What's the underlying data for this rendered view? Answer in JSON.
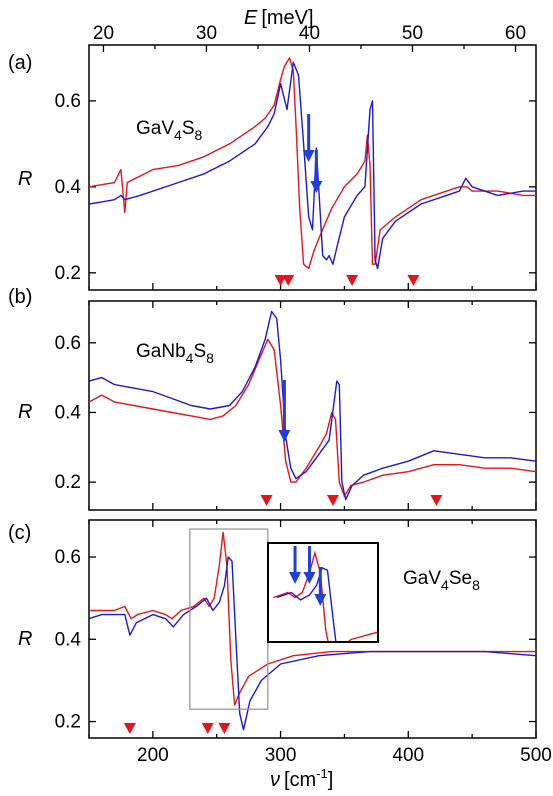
{
  "chart_data": [
    {
      "type": "line",
      "panel": "(a)",
      "compound": {
        "base": "GaV",
        "sub1": "4",
        "mid": "S",
        "sub2": "8"
      },
      "ylabel": "R",
      "ylim": [
        0.16,
        0.73
      ],
      "yticks": [
        0.2,
        0.4,
        0.6
      ],
      "top_axis": {
        "label_main": "E",
        "label_unit": "[meV]",
        "ticks": [
          20,
          30,
          40,
          50,
          60
        ]
      },
      "colors": {
        "series1": "#e8141c",
        "series2": "#1a1ad6",
        "markers": "#e8141c",
        "arrows": "#1f3fd8"
      },
      "series": [
        {
          "points": [
            [
              150,
              0.4
            ],
            [
              160,
              0.405
            ],
            [
              170,
              0.41
            ],
            [
              175,
              0.44
            ],
            [
              178,
              0.34
            ],
            [
              180,
              0.41
            ],
            [
              200,
              0.44
            ],
            [
              220,
              0.45
            ],
            [
              240,
              0.47
            ],
            [
              260,
              0.5
            ],
            [
              280,
              0.54
            ],
            [
              288,
              0.56
            ],
            [
              295,
              0.59
            ],
            [
              300,
              0.65
            ],
            [
              303,
              0.68
            ],
            [
              307,
              0.7
            ],
            [
              310,
              0.67
            ],
            [
              312,
              0.55
            ],
            [
              315,
              0.35
            ],
            [
              318,
              0.22
            ],
            [
              322,
              0.21
            ],
            [
              326,
              0.25
            ],
            [
              330,
              0.28
            ],
            [
              340,
              0.35
            ],
            [
              350,
              0.4
            ],
            [
              360,
              0.43
            ],
            [
              366,
              0.46
            ],
            [
              368,
              0.52
            ],
            [
              370,
              0.45
            ],
            [
              372,
              0.22
            ],
            [
              374,
              0.22
            ],
            [
              378,
              0.3
            ],
            [
              390,
              0.33
            ],
            [
              410,
              0.37
            ],
            [
              430,
              0.39
            ],
            [
              440,
              0.4
            ],
            [
              446,
              0.4
            ],
            [
              450,
              0.39
            ],
            [
              470,
              0.39
            ],
            [
              490,
              0.38
            ],
            [
              500,
              0.38
            ]
          ]
        },
        {
          "points": [
            [
              150,
              0.36
            ],
            [
              160,
              0.365
            ],
            [
              170,
              0.37
            ],
            [
              175,
              0.38
            ],
            [
              178,
              0.37
            ],
            [
              190,
              0.38
            ],
            [
              220,
              0.41
            ],
            [
              240,
              0.43
            ],
            [
              260,
              0.46
            ],
            [
              280,
              0.5
            ],
            [
              290,
              0.54
            ],
            [
              295,
              0.57
            ],
            [
              300,
              0.64
            ],
            [
              305,
              0.58
            ],
            [
              310,
              0.69
            ],
            [
              314,
              0.66
            ],
            [
              318,
              0.5
            ],
            [
              322,
              0.33
            ],
            [
              325,
              0.3
            ],
            [
              328,
              0.49
            ],
            [
              331,
              0.34
            ],
            [
              333,
              0.24
            ],
            [
              336,
              0.23
            ],
            [
              338,
              0.24
            ],
            [
              341,
              0.22
            ],
            [
              345,
              0.27
            ],
            [
              350,
              0.33
            ],
            [
              360,
              0.38
            ],
            [
              366,
              0.4
            ],
            [
              370,
              0.58
            ],
            [
              372,
              0.6
            ],
            [
              374,
              0.23
            ],
            [
              376,
              0.21
            ],
            [
              380,
              0.28
            ],
            [
              390,
              0.32
            ],
            [
              410,
              0.36
            ],
            [
              430,
              0.38
            ],
            [
              440,
              0.39
            ],
            [
              445,
              0.42
            ],
            [
              450,
              0.4
            ],
            [
              470,
              0.38
            ],
            [
              490,
              0.39
            ],
            [
              500,
              0.39
            ]
          ]
        }
      ],
      "mode_markers_x": [
        300,
        306,
        356,
        404
      ],
      "arrows_x": [
        322,
        328
      ]
    },
    {
      "type": "line",
      "panel": "(b)",
      "compound": {
        "base": "GaNb",
        "sub1": "4",
        "mid": "S",
        "sub2": "8"
      },
      "ylabel": "R",
      "ylim": [
        0.12,
        0.72
      ],
      "yticks": [
        0.2,
        0.4,
        0.6
      ],
      "colors": {
        "series1": "#e8141c",
        "series2": "#1a1ad6",
        "markers": "#e8141c",
        "arrows": "#1f3fd8"
      },
      "series": [
        {
          "points": [
            [
              150,
              0.43
            ],
            [
              160,
              0.45
            ],
            [
              170,
              0.43
            ],
            [
              185,
              0.42
            ],
            [
              200,
              0.41
            ],
            [
              215,
              0.4
            ],
            [
              230,
              0.39
            ],
            [
              245,
              0.38
            ],
            [
              255,
              0.39
            ],
            [
              265,
              0.42
            ],
            [
              275,
              0.48
            ],
            [
              283,
              0.55
            ],
            [
              290,
              0.61
            ],
            [
              295,
              0.58
            ],
            [
              300,
              0.42
            ],
            [
              304,
              0.26
            ],
            [
              308,
              0.2
            ],
            [
              312,
              0.2
            ],
            [
              320,
              0.24
            ],
            [
              330,
              0.3
            ],
            [
              336,
              0.34
            ],
            [
              340,
              0.4
            ],
            [
              343,
              0.38
            ],
            [
              346,
              0.2
            ],
            [
              350,
              0.16
            ],
            [
              355,
              0.19
            ],
            [
              365,
              0.2
            ],
            [
              380,
              0.22
            ],
            [
              400,
              0.23
            ],
            [
              420,
              0.25
            ],
            [
              440,
              0.25
            ],
            [
              460,
              0.24
            ],
            [
              480,
              0.24
            ],
            [
              500,
              0.23
            ]
          ]
        },
        {
          "points": [
            [
              150,
              0.49
            ],
            [
              160,
              0.5
            ],
            [
              170,
              0.48
            ],
            [
              185,
              0.47
            ],
            [
              200,
              0.46
            ],
            [
              215,
              0.44
            ],
            [
              230,
              0.42
            ],
            [
              245,
              0.41
            ],
            [
              260,
              0.42
            ],
            [
              270,
              0.46
            ],
            [
              280,
              0.53
            ],
            [
              288,
              0.61
            ],
            [
              293,
              0.69
            ],
            [
              297,
              0.67
            ],
            [
              300,
              0.55
            ],
            [
              304,
              0.33
            ],
            [
              308,
              0.24
            ],
            [
              312,
              0.21
            ],
            [
              320,
              0.23
            ],
            [
              330,
              0.28
            ],
            [
              338,
              0.32
            ],
            [
              344,
              0.49
            ],
            [
              346,
              0.48
            ],
            [
              348,
              0.2
            ],
            [
              351,
              0.15
            ],
            [
              356,
              0.19
            ],
            [
              365,
              0.22
            ],
            [
              380,
              0.24
            ],
            [
              400,
              0.26
            ],
            [
              420,
              0.29
            ],
            [
              440,
              0.28
            ],
            [
              460,
              0.27
            ],
            [
              480,
              0.27
            ],
            [
              500,
              0.26
            ]
          ]
        }
      ],
      "mode_markers_x": [
        289,
        341,
        422
      ],
      "arrows_x": [
        303
      ]
    },
    {
      "type": "line",
      "panel": "(c)",
      "compound": {
        "base": "GaV",
        "sub1": "4",
        "mid": "Se",
        "sub2": "8"
      },
      "ylabel": "R",
      "ylim": [
        0.16,
        0.69
      ],
      "yticks": [
        0.2,
        0.4,
        0.6
      ],
      "xlabel_main": "ν",
      "xlabel_unit": "[cm",
      "xlabel_exp": "-1",
      "xlabel_close": "]",
      "xticks": [
        200,
        300,
        400,
        500
      ],
      "xlim": [
        150,
        500
      ],
      "colors": {
        "series1": "#e8141c",
        "series2": "#1a1ad6",
        "markers": "#e8141c",
        "arrows": "#1f3fd8",
        "zoom_box": "#999999"
      },
      "series": [
        {
          "points": [
            [
              150,
              0.47
            ],
            [
              160,
              0.47
            ],
            [
              170,
              0.47
            ],
            [
              178,
              0.48
            ],
            [
              183,
              0.45
            ],
            [
              188,
              0.46
            ],
            [
              200,
              0.47
            ],
            [
              210,
              0.46
            ],
            [
              215,
              0.45
            ],
            [
              222,
              0.47
            ],
            [
              232,
              0.48
            ],
            [
              240,
              0.5
            ],
            [
              244,
              0.48
            ],
            [
              248,
              0.5
            ],
            [
              252,
              0.58
            ],
            [
              255,
              0.66
            ],
            [
              258,
              0.58
            ],
            [
              261,
              0.35
            ],
            [
              264,
              0.24
            ],
            [
              268,
              0.27
            ],
            [
              275,
              0.31
            ],
            [
              290,
              0.34
            ],
            [
              310,
              0.36
            ],
            [
              340,
              0.37
            ],
            [
              380,
              0.37
            ],
            [
              420,
              0.37
            ],
            [
              460,
              0.37
            ],
            [
              500,
              0.37
            ]
          ]
        },
        {
          "points": [
            [
              150,
              0.45
            ],
            [
              160,
              0.46
            ],
            [
              170,
              0.46
            ],
            [
              178,
              0.46
            ],
            [
              182,
              0.41
            ],
            [
              187,
              0.44
            ],
            [
              200,
              0.46
            ],
            [
              210,
              0.45
            ],
            [
              216,
              0.43
            ],
            [
              224,
              0.46
            ],
            [
              234,
              0.48
            ],
            [
              242,
              0.5
            ],
            [
              247,
              0.47
            ],
            [
              252,
              0.49
            ],
            [
              256,
              0.53
            ],
            [
              259,
              0.6
            ],
            [
              262,
              0.59
            ],
            [
              265,
              0.4
            ],
            [
              268,
              0.22
            ],
            [
              271,
              0.18
            ],
            [
              276,
              0.25
            ],
            [
              285,
              0.3
            ],
            [
              300,
              0.34
            ],
            [
              330,
              0.36
            ],
            [
              370,
              0.37
            ],
            [
              420,
              0.37
            ],
            [
              460,
              0.37
            ],
            [
              500,
              0.36
            ]
          ]
        }
      ],
      "mode_markers_x": [
        182,
        243,
        256
      ],
      "inset_arrows_x": [
        244,
        252,
        258
      ]
    }
  ]
}
